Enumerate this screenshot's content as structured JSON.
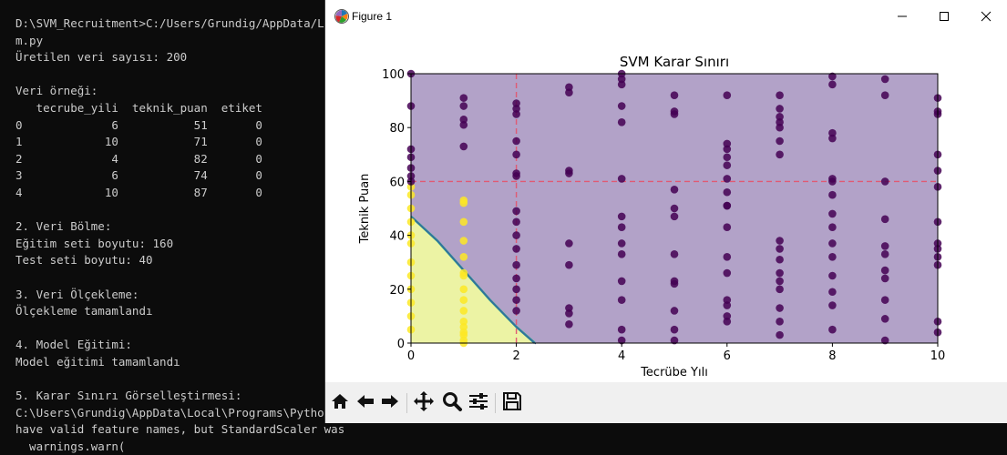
{
  "terminal": {
    "lines": [
      "D:\\SVM_Recruitment>C:/Users/Grundig/AppData/Local",
      "m.py",
      "Üretilen veri sayısı: 200",
      "",
      "Veri örneği:",
      "   tecrube_yili  teknik_puan  etiket",
      "0             6           51       0",
      "1            10           71       0",
      "2             4           82       0",
      "3             6           74       0",
      "4            10           87       0",
      "",
      "2. Veri Bölme:",
      "Eğitim seti boyutu: 160",
      "Test seti boyutu: 40",
      "",
      "3. Veri Ölçekleme:",
      "Ölçekleme tamamlandı",
      "",
      "4. Model Eğitimi:",
      "Model eğitimi tamamlandı",
      "",
      "5. Karar Sınırı Görselleştirmesi:",
      "C:\\Users\\Grundig\\AppData\\Local\\Programs\\Python\\Py",
      "have valid feature names, but StandardScaler was",
      "  warnings.warn("
    ]
  },
  "window": {
    "title": "Figure 1"
  },
  "colors": {
    "class0_region": "#b2a2c8",
    "class1_region": "#ecf3a4",
    "class0_point": "#440154",
    "class1_point": "#fde725",
    "reference_line": "#e05a73"
  },
  "toolbar": {
    "icons": [
      "home-icon",
      "back-arrow-icon",
      "forward-arrow-icon",
      "pan-icon",
      "zoom-icon",
      "configure-subplots-icon",
      "save-icon"
    ]
  },
  "chart_data": {
    "type": "scatter",
    "title": "SVM Karar Sınırı",
    "xlabel": "Tecrübe Yılı",
    "ylabel": "Teknik Puan",
    "xlim": [
      0,
      10
    ],
    "ylim": [
      0,
      100
    ],
    "xticks": [
      0,
      2,
      4,
      6,
      8,
      10
    ],
    "yticks": [
      0,
      20,
      40,
      60,
      80,
      100
    ],
    "grid": false,
    "legend": "none",
    "reference_lines": {
      "vertical_x": 2,
      "horizontal_y": 60
    },
    "decision_boundary": [
      [
        0,
        47
      ],
      [
        0.5,
        38
      ],
      [
        1,
        27
      ],
      [
        1.5,
        16
      ],
      [
        2,
        6
      ],
      [
        2.35,
        0
      ]
    ],
    "series": [
      {
        "label_value": 1,
        "x": [
          0,
          0,
          0,
          0,
          0,
          0,
          0,
          0,
          0,
          0,
          0,
          0,
          1,
          1,
          1,
          1,
          1,
          1,
          1,
          1,
          1,
          1,
          1,
          1,
          1,
          1,
          1,
          1
        ],
        "y": [
          58,
          55,
          50,
          45,
          40,
          37,
          30,
          25,
          20,
          15,
          10,
          5,
          53,
          52,
          45,
          38,
          32,
          26,
          25,
          20,
          16,
          12,
          8,
          6,
          4,
          3,
          1,
          0
        ]
      },
      {
        "label_value": 0,
        "x": [
          0,
          0,
          0,
          0,
          0,
          0,
          0,
          1,
          1,
          1,
          1,
          1,
          2,
          2,
          2,
          2,
          2,
          2,
          2,
          2,
          2,
          2,
          2,
          2,
          2,
          2,
          2,
          2,
          3,
          3,
          3,
          3,
          3,
          3,
          3,
          3,
          3,
          4,
          4,
          4,
          4,
          4,
          4,
          4,
          4,
          4,
          4,
          4,
          4,
          4,
          4,
          5,
          5,
          5,
          5,
          5,
          5,
          5,
          5,
          5,
          5,
          5,
          5,
          6,
          6,
          6,
          6,
          6,
          6,
          6,
          6,
          6,
          6,
          6,
          6,
          6,
          6,
          6,
          6,
          7,
          7,
          7,
          7,
          7,
          7,
          7,
          7,
          7,
          7,
          7,
          7,
          7,
          7,
          7,
          7,
          8,
          8,
          8,
          8,
          8,
          8,
          8,
          8,
          8,
          8,
          8,
          8,
          8,
          8,
          8,
          9,
          9,
          9,
          9,
          9,
          9,
          9,
          9,
          9,
          9,
          9,
          10,
          10,
          10,
          10,
          10,
          10,
          10,
          10,
          10,
          10,
          10,
          10,
          10
        ],
        "y": [
          100,
          88,
          72,
          69,
          65,
          62,
          60,
          91,
          88,
          83,
          81,
          73,
          89,
          87,
          85,
          75,
          70,
          63,
          62,
          49,
          45,
          40,
          35,
          29,
          24,
          20,
          16,
          12,
          95,
          93,
          64,
          63,
          37,
          29,
          13,
          11,
          7,
          100,
          98,
          96,
          88,
          82,
          61,
          47,
          43,
          37,
          33,
          23,
          16,
          5,
          1,
          92,
          86,
          85,
          57,
          50,
          47,
          33,
          23,
          22,
          12,
          5,
          1,
          92,
          74,
          72,
          69,
          66,
          61,
          56,
          51,
          51,
          43,
          32,
          26,
          16,
          14,
          10,
          8,
          92,
          87,
          84,
          82,
          80,
          75,
          70,
          38,
          35,
          31,
          26,
          23,
          20,
          13,
          8,
          3,
          99,
          96,
          78,
          76,
          61,
          60,
          55,
          48,
          43,
          37,
          32,
          25,
          19,
          14,
          5,
          98,
          92,
          60,
          46,
          36,
          33,
          27,
          24,
          16,
          9,
          1,
          91,
          86,
          85,
          70,
          64,
          58,
          45,
          37,
          35,
          32,
          29,
          8,
          4
        ]
      }
    ]
  }
}
